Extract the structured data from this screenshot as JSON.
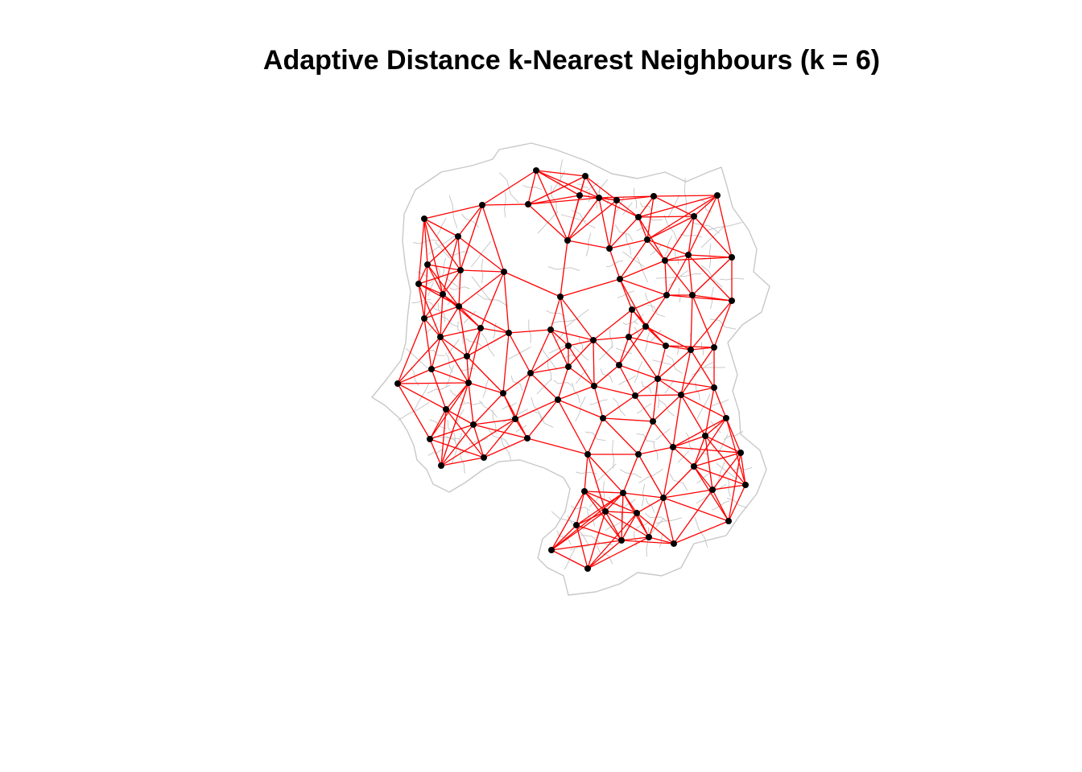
{
  "title": "Adaptive Distance k-Nearest Neighbours (k = 6)",
  "k": 6,
  "colors": {
    "edge": "#ff0000",
    "node": "#000000",
    "boundary": "#c8c8c8",
    "background": "#ffffff"
  }
}
